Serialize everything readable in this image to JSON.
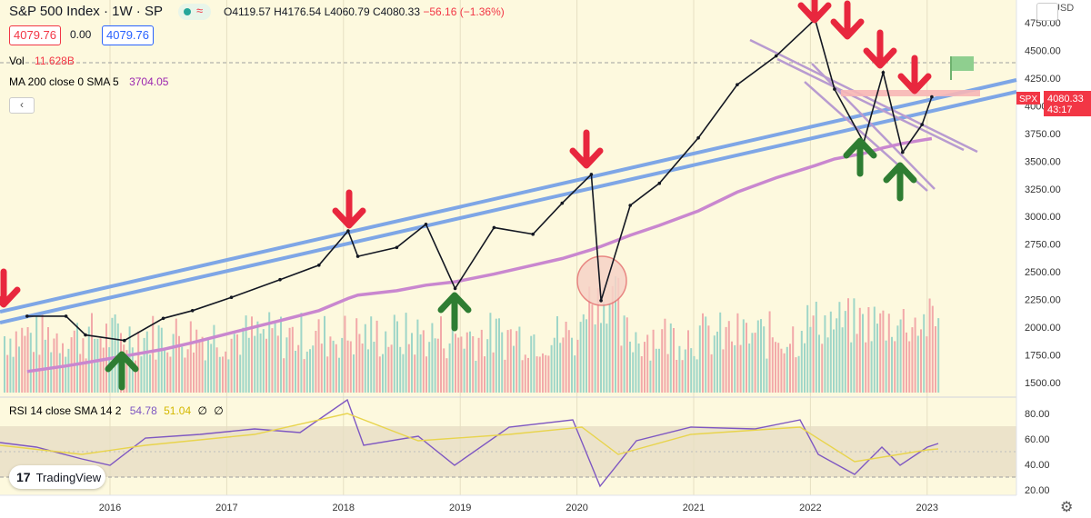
{
  "header": {
    "title": "S&P 500 Index · 1W · SP",
    "open": "O4119.57",
    "high": "H4176.54",
    "low": "L4060.79",
    "close": "C4080.33",
    "change": "−56.16 (−1.36%)",
    "bid": "4079.76",
    "spread": "0.00",
    "ask": "4079.76",
    "vol_label": "Vol",
    "vol_value": "11.628B",
    "ma_label": "MA 200 close 0 SMA 5",
    "ma_value": "3704.05",
    "rsi_label": "RSI 14 close SMA 14 2",
    "rsi_value": "54.78",
    "rsi_sma_value": "51.04",
    "rsi_extra1": "∅",
    "rsi_extra2": "∅"
  },
  "price_axis": {
    "currency": "USD",
    "ticks": [
      "4750.00",
      "4500.00",
      "4250.00",
      "4000.00",
      "3750.00",
      "3500.00",
      "3250.00",
      "3000.00",
      "2750.00",
      "2500.00",
      "2250.00",
      "2000.00",
      "1750.00",
      "1500.00"
    ],
    "symbol_tag": "SPX",
    "last_price": "4080.33",
    "countdown": "43:17"
  },
  "rsi_axis": {
    "ticks": [
      "80.00",
      "60.00",
      "40.00",
      "20.00"
    ]
  },
  "time_axis": {
    "labels": [
      "2016",
      "2017",
      "2018",
      "2019",
      "2020",
      "2021",
      "2022",
      "2023"
    ]
  },
  "logo": {
    "text": "TradingView",
    "mark": "17"
  },
  "colors": {
    "background": "#fdf9de",
    "price": "#131722",
    "trend_blue": "#7ea6e6",
    "ma_purple": "#c987cf",
    "channel_purple": "#b89bd0",
    "arrow_red": "#e8273e",
    "arrow_green": "#2e7d32",
    "vol_up": "#9fd6c8",
    "vol_down": "#f2a9a9",
    "rsi_line": "#7e57c2",
    "rsi_sma": "#e8d44d",
    "tag_red": "#f23645"
  },
  "chart_data": {
    "type": "line",
    "title": "S&P 500 Index · 1W · SP",
    "ylabel": "USD",
    "ylim": [
      1400,
      4900
    ],
    "x": [
      "2015-04",
      "2015-08",
      "2015-10",
      "2016-02",
      "2016-06",
      "2016-09",
      "2017-01",
      "2017-06",
      "2017-10",
      "2018-01",
      "2018-02",
      "2018-06",
      "2018-09",
      "2018-12",
      "2019-04",
      "2019-08",
      "2019-11",
      "2020-02",
      "2020-03",
      "2020-06",
      "2020-09",
      "2021-01",
      "2021-05",
      "2021-09",
      "2022-01",
      "2022-03",
      "2022-06",
      "2022-08",
      "2022-10",
      "2022-12",
      "2023-01"
    ],
    "series": [
      {
        "name": "S&P 500 Index",
        "values": [
          2100,
          2100,
          1930,
          1880,
          2080,
          2150,
          2270,
          2430,
          2560,
          2870,
          2640,
          2720,
          2930,
          2350,
          2900,
          2840,
          3120,
          3380,
          2240,
          3100,
          3300,
          3710,
          4190,
          4450,
          4780,
          4150,
          3670,
          4300,
          3580,
          3830,
          4080
        ]
      },
      {
        "name": "MA 200",
        "values": [
          1600,
          1650,
          1680,
          1740,
          1800,
          1860,
          1950,
          2060,
          2150,
          2260,
          2290,
          2330,
          2380,
          2410,
          2480,
          2560,
          2620,
          2700,
          2730,
          2830,
          2920,
          3050,
          3220,
          3350,
          3460,
          3520,
          3570,
          3620,
          3660,
          3690,
          3704
        ]
      }
    ]
  }
}
